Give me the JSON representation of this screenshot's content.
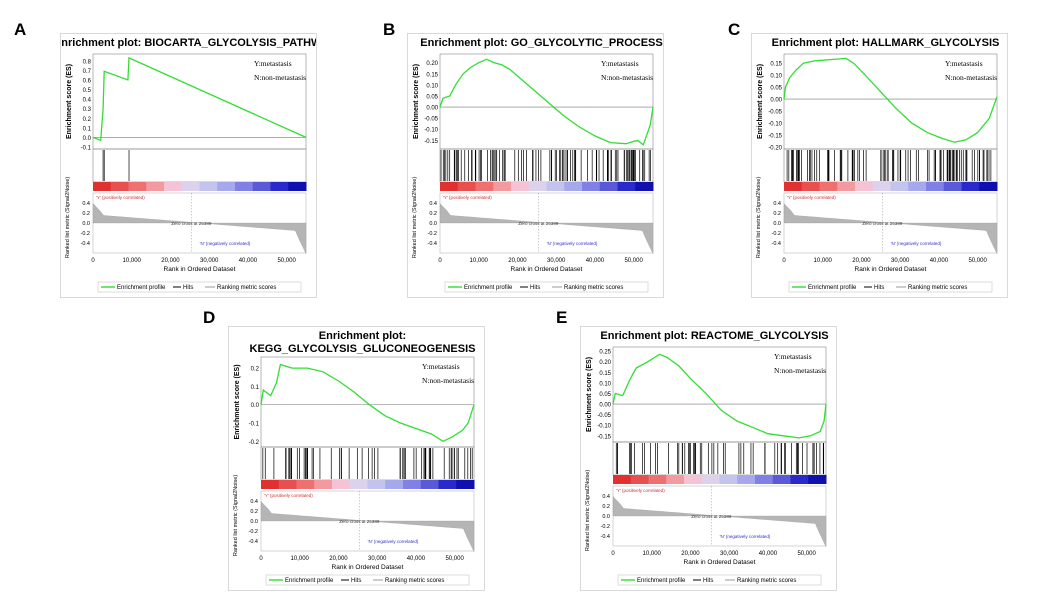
{
  "panels": [
    {
      "letter": "A",
      "title_lines": [
        "Enrichment plot: BIOCARTA_GLYCOLYSIS_PATHWAY"
      ],
      "es_ticks": [
        "0.8",
        "0.7",
        "0.6",
        "0.5",
        "0.4",
        "0.3",
        "0.2",
        "0.1",
        "0.0",
        "-0.1"
      ],
      "ylim": [
        -0.1,
        0.85
      ],
      "es_curve": [
        [
          0,
          0
        ],
        [
          2000,
          -0.03
        ],
        [
          2600,
          0.3
        ],
        [
          2900,
          0.69
        ],
        [
          9000,
          0.6
        ],
        [
          9300,
          0.83
        ],
        [
          55000,
          0
        ]
      ],
      "hits": [
        2600,
        2900,
        9300
      ],
      "legend_top": "Y:metastasis",
      "legend_bottom": "N:non-metastasis",
      "pos_label": "'Y' (positively correlated)",
      "neg_label": "'N' (negatively correlated)",
      "zero_cross": "Zero cross at 25389",
      "metric_ticks": [
        "0.4",
        "0.2",
        "0.0",
        "-0.2",
        "-0.4"
      ],
      "x_ticks": [
        "0",
        "10,000",
        "20,000",
        "30,000",
        "40,000",
        "50,000"
      ],
      "x_label": "Rank in Ordered Dataset",
      "es_label": "Enrichment score (ES)",
      "metric_label": "Ranked list metric (Signal2Noise)",
      "legend_items": [
        "Enrichment profile",
        "Hits",
        "Ranking metric scores"
      ]
    },
    {
      "letter": "B",
      "title_lines": [
        "Enrichment plot: GO_GLYCOLYTIC_PROCESS"
      ],
      "es_ticks": [
        "0.20",
        "0.15",
        "0.10",
        "0.05",
        "0.00",
        "-0.05",
        "-0.10",
        "-0.15"
      ],
      "ylim": [
        -0.18,
        0.23
      ],
      "es_curve": [
        [
          0,
          0
        ],
        [
          800,
          0.04
        ],
        [
          2500,
          0.05
        ],
        [
          4000,
          0.1
        ],
        [
          6000,
          0.15
        ],
        [
          8000,
          0.18
        ],
        [
          10000,
          0.2
        ],
        [
          12000,
          0.215
        ],
        [
          14000,
          0.2
        ],
        [
          16000,
          0.19
        ],
        [
          18000,
          0.17
        ],
        [
          20000,
          0.14
        ],
        [
          24000,
          0.08
        ],
        [
          28000,
          0.02
        ],
        [
          32000,
          -0.04
        ],
        [
          36000,
          -0.09
        ],
        [
          40000,
          -0.13
        ],
        [
          44000,
          -0.16
        ],
        [
          48000,
          -0.165
        ],
        [
          51000,
          -0.15
        ],
        [
          52500,
          -0.17
        ],
        [
          53500,
          -0.12
        ],
        [
          54300,
          -0.08
        ],
        [
          55000,
          0.0
        ]
      ],
      "hits": "dense",
      "legend_top": "Y:metastasis",
      "legend_bottom": "N:non-metastasis",
      "pos_label": "'Y' (positively correlated)",
      "neg_label": "'N' (negatively correlated)",
      "zero_cross": "Zero cross at 25389",
      "metric_ticks": [
        "0.4",
        "0.2",
        "0.0",
        "-0.2",
        "-0.4"
      ],
      "x_ticks": [
        "0",
        "10,000",
        "20,000",
        "30,000",
        "40,000",
        "50,000"
      ],
      "x_label": "Rank in Ordered Dataset",
      "es_label": "Enrichment score (ES)",
      "metric_label": "Ranked list metric (Signal2Noise)",
      "legend_items": [
        "Enrichment profile",
        "Hits",
        "Ranking metric scores"
      ]
    },
    {
      "letter": "C",
      "title_lines": [
        "Enrichment plot: HALLMARK_GLYCOLYSIS"
      ],
      "es_ticks": [
        "0.15",
        "0.10",
        "0.05",
        "0.00",
        "-0.05",
        "-0.10",
        "-0.15",
        "-0.20"
      ],
      "ylim": [
        -0.2,
        0.18
      ],
      "es_curve": [
        [
          0,
          0
        ],
        [
          400,
          0.05
        ],
        [
          1500,
          0.09
        ],
        [
          3000,
          0.12
        ],
        [
          5000,
          0.15
        ],
        [
          8000,
          0.16
        ],
        [
          12000,
          0.165
        ],
        [
          16000,
          0.17
        ],
        [
          18000,
          0.15
        ],
        [
          21000,
          0.1
        ],
        [
          25000,
          0.03
        ],
        [
          29000,
          -0.04
        ],
        [
          33000,
          -0.1
        ],
        [
          37000,
          -0.14
        ],
        [
          41000,
          -0.165
        ],
        [
          44000,
          -0.18
        ],
        [
          47000,
          -0.17
        ],
        [
          50000,
          -0.14
        ],
        [
          53000,
          -0.08
        ],
        [
          55000,
          0.01
        ]
      ],
      "hits": "dense",
      "legend_top": "Y:metastasis",
      "legend_bottom": "N:non-metastasis",
      "pos_label": "'Y' (positively correlated)",
      "neg_label": "'N' (negatively correlated)",
      "zero_cross": "Zero cross at 25389",
      "metric_ticks": [
        "0.4",
        "0.2",
        "0.0",
        "-0.2",
        "-0.4"
      ],
      "x_ticks": [
        "0",
        "10,000",
        "20,000",
        "30,000",
        "40,000",
        "50,000"
      ],
      "x_label": "Rank in Ordered Dataset",
      "es_label": "Enrichment score (ES)",
      "metric_label": "Ranked list metric (Signal2Noise)",
      "legend_items": [
        "Enrichment profile",
        "Hits",
        "Ranking metric scores"
      ]
    },
    {
      "letter": "D",
      "title_lines": [
        "Enrichment plot:",
        "KEGG_GLYCOLYSIS_GLUCONEOGENESIS"
      ],
      "es_ticks": [
        "0.2",
        "0.1",
        "0.0",
        "-0.1",
        "-0.2"
      ],
      "ylim": [
        -0.22,
        0.25
      ],
      "es_curve": [
        [
          0,
          0
        ],
        [
          600,
          0.08
        ],
        [
          2500,
          0.05
        ],
        [
          4000,
          0.12
        ],
        [
          5000,
          0.22
        ],
        [
          8000,
          0.2
        ],
        [
          12000,
          0.2
        ],
        [
          16000,
          0.18
        ],
        [
          20000,
          0.13
        ],
        [
          24000,
          0.07
        ],
        [
          28000,
          0.0
        ],
        [
          32000,
          -0.06
        ],
        [
          36000,
          -0.1
        ],
        [
          40000,
          -0.13
        ],
        [
          44000,
          -0.16
        ],
        [
          47000,
          -0.2
        ],
        [
          49000,
          -0.18
        ],
        [
          52000,
          -0.14
        ],
        [
          53500,
          -0.1
        ],
        [
          55000,
          0.0
        ]
      ],
      "hits": "medium",
      "legend_top": "Y:metastasis",
      "legend_bottom": "N:non-metastasis",
      "pos_label": "'Y' (positively correlated)",
      "neg_label": "'N' (negatively correlated)",
      "zero_cross": "Zero cross at 25389",
      "metric_ticks": [
        "0.4",
        "0.2",
        "0.0",
        "-0.2",
        "-0.4"
      ],
      "x_ticks": [
        "0",
        "10,000",
        "20,000",
        "30,000",
        "40,000",
        "50,000"
      ],
      "x_label": "Rank in Ordered Dataset",
      "es_label": "Enrichment score (ES)",
      "metric_label": "Ranked list metric (Signal2Noise)",
      "legend_items": [
        "Enrichment profile",
        "Hits",
        "Ranking metric scores"
      ]
    },
    {
      "letter": "E",
      "title_lines": [
        "Enrichment plot: REACTOME_GLYCOLYSIS"
      ],
      "es_ticks": [
        "0.25",
        "0.20",
        "0.15",
        "0.10",
        "0.05",
        "0.00",
        "-0.05",
        "-0.10",
        "-0.15"
      ],
      "ylim": [
        -0.17,
        0.26
      ],
      "es_curve": [
        [
          0,
          0
        ],
        [
          600,
          0.05
        ],
        [
          2500,
          0.04
        ],
        [
          4500,
          0.12
        ],
        [
          6000,
          0.17
        ],
        [
          9000,
          0.2
        ],
        [
          12000,
          0.235
        ],
        [
          14000,
          0.22
        ],
        [
          17000,
          0.18
        ],
        [
          20000,
          0.12
        ],
        [
          24000,
          0.05
        ],
        [
          28000,
          -0.03
        ],
        [
          32000,
          -0.08
        ],
        [
          36000,
          -0.11
        ],
        [
          40000,
          -0.14
        ],
        [
          44000,
          -0.15
        ],
        [
          48000,
          -0.16
        ],
        [
          51000,
          -0.15
        ],
        [
          53500,
          -0.13
        ],
        [
          54500,
          -0.08
        ],
        [
          55000,
          0.0
        ]
      ],
      "hits": "medium",
      "legend_top": "Y:metastasis",
      "legend_bottom": "N:non-metastasis",
      "pos_label": "'Y' (positively correlated)",
      "neg_label": "'N' (negatively correlated)",
      "zero_cross": "Zero cross at 25389",
      "metric_ticks": [
        "0.4",
        "0.2",
        "0.0",
        "-0.2",
        "-0.4"
      ],
      "x_ticks": [
        "0",
        "10,000",
        "20,000",
        "30,000",
        "40,000",
        "50,000"
      ],
      "x_label": "Rank in Ordered Dataset",
      "es_label": "Enrichment score (ES)",
      "metric_label": "Ranked list metric (Signal2Noise)",
      "legend_items": [
        "Enrichment profile",
        "Hits",
        "Ranking metric scores"
      ]
    }
  ],
  "chart_data": [
    {
      "type": "line",
      "title": "Enrichment plot: BIOCARTA_GLYCOLYSIS_PATHWAY",
      "xlabel": "Rank in Ordered Dataset",
      "ylabel": "Enrichment score (ES)",
      "x": [
        0,
        2000,
        2600,
        2900,
        9000,
        9300,
        55000
      ],
      "y": [
        0,
        -0.03,
        0.3,
        0.69,
        0.6,
        0.83,
        0
      ],
      "ylim": [
        -0.1,
        0.85
      ],
      "xlim": [
        0,
        55000
      ]
    },
    {
      "type": "line",
      "title": "Enrichment plot: GO_GLYCOLYTIC_PROCESS",
      "xlabel": "Rank in Ordered Dataset",
      "ylabel": "Enrichment score (ES)",
      "ylim": [
        -0.18,
        0.23
      ],
      "xlim": [
        0,
        55000
      ]
    },
    {
      "type": "line",
      "title": "Enrichment plot: HALLMARK_GLYCOLYSIS",
      "xlabel": "Rank in Ordered Dataset",
      "ylabel": "Enrichment score (ES)",
      "ylim": [
        -0.2,
        0.18
      ],
      "xlim": [
        0,
        55000
      ]
    },
    {
      "type": "line",
      "title": "Enrichment plot: KEGG_GLYCOLYSIS_GLUCONEOGENESIS",
      "xlabel": "Rank in Ordered Dataset",
      "ylabel": "Enrichment score (ES)",
      "ylim": [
        -0.22,
        0.25
      ],
      "xlim": [
        0,
        55000
      ]
    },
    {
      "type": "line",
      "title": "Enrichment plot: REACTOME_GLYCOLYSIS",
      "xlabel": "Rank in Ordered Dataset",
      "ylabel": "Enrichment score (ES)",
      "ylim": [
        -0.17,
        0.26
      ],
      "xlim": [
        0,
        55000
      ]
    }
  ],
  "colors": {
    "es_line": "#33dd33",
    "hit": "#000000",
    "metric_fill": "#b5b5b5",
    "pos_text": "#d03030",
    "neg_text": "#3030c8",
    "zero_line": "#999999"
  }
}
